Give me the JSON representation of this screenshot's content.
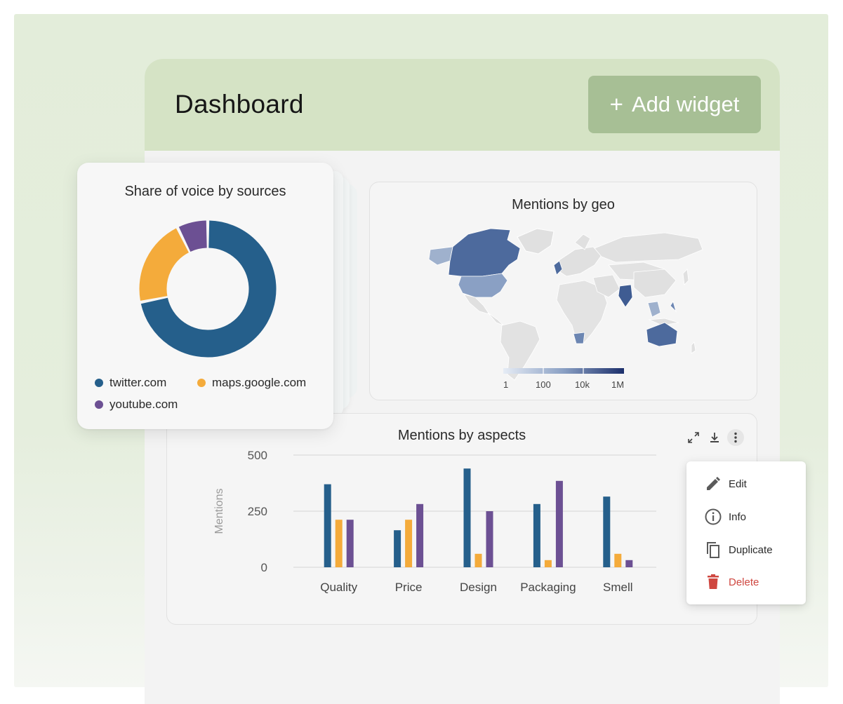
{
  "dashboard": {
    "title": "Dashboard",
    "add_widget_label": "Add widget",
    "add_widget_icon": "plus-icon"
  },
  "colors": {
    "twitter": "#255f8b",
    "maps": "#f4ab3b",
    "youtube": "#6c5093",
    "header_bg": "#d5e3c5",
    "button_bg": "#a7bf95",
    "delete": "#cf4740"
  },
  "share_of_voice": {
    "title": "Share of voice by sources",
    "legend": [
      {
        "label": "twitter.com",
        "color": "#255f8b"
      },
      {
        "label": "maps.google.com",
        "color": "#f4ab3b"
      },
      {
        "label": "youtube.com",
        "color": "#6c5093"
      }
    ]
  },
  "geo": {
    "title": "Mentions by geo",
    "scale_labels": [
      "1",
      "100",
      "10k",
      "1M"
    ]
  },
  "aspects": {
    "title": "Mentions by aspects",
    "actions": [
      "expand-icon",
      "download-icon",
      "more-vertical-icon"
    ]
  },
  "context_menu": {
    "items": [
      {
        "label": "Edit",
        "icon": "pencil-icon"
      },
      {
        "label": "Info",
        "icon": "info-icon"
      },
      {
        "label": "Duplicate",
        "icon": "copy-icon"
      },
      {
        "label": "Delete",
        "icon": "trash-icon"
      }
    ]
  },
  "chart_data": [
    {
      "type": "pie",
      "donut": true,
      "title": "Share of voice by sources",
      "categories": [
        "twitter.com",
        "maps.google.com",
        "youtube.com"
      ],
      "values": [
        69,
        20,
        7
      ],
      "colors": [
        "#255f8b",
        "#f4ab3b",
        "#6c5093"
      ]
    },
    {
      "type": "bar",
      "title": "Mentions by aspects",
      "categories": [
        "Quality",
        "Price",
        "Design",
        "Packaging",
        "Smell"
      ],
      "series": [
        {
          "values": [
            370,
            165,
            440,
            282,
            315
          ],
          "color": "#255f8b"
        },
        {
          "values": [
            212,
            212,
            60,
            32,
            60
          ],
          "color": "#f4ab3b"
        },
        {
          "values": [
            212,
            282,
            250,
            385,
            32
          ],
          "color": "#6c5093"
        }
      ],
      "ylabel": "Mentions",
      "ylim": [
        0,
        500
      ],
      "yticks": [
        0,
        250,
        500
      ],
      "grid": true
    }
  ]
}
